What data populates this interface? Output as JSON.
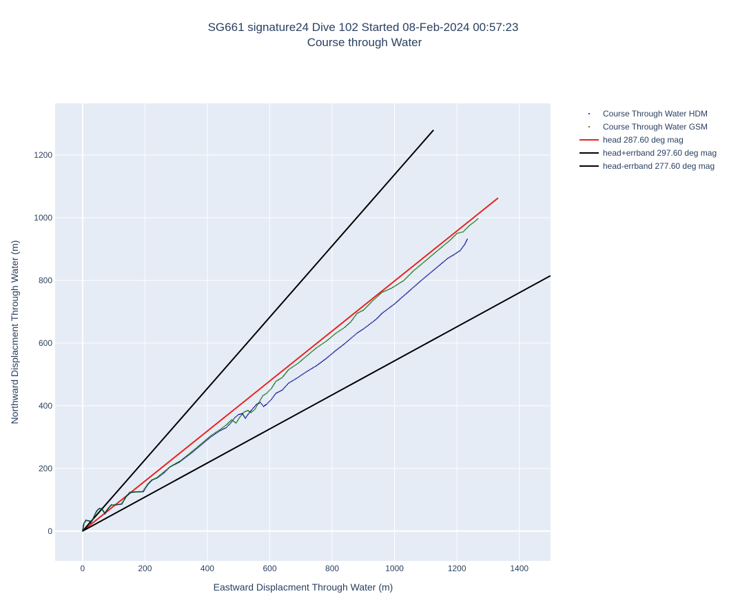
{
  "chart_data": {
    "type": "scatter",
    "title_line1": "SG661 signature24 Dive 102 Started 08-Feb-2024 00:57:23",
    "title_line2": "Course through Water",
    "xlabel": "Eastward Displacment Through Water (m)",
    "ylabel": "Northward Displacment Through Water (m)",
    "xlim": [
      -88,
      1500
    ],
    "ylim": [
      -95,
      1365
    ],
    "xticks": [
      0,
      200,
      400,
      600,
      800,
      1000,
      1200,
      1400
    ],
    "yticks": [
      0,
      200,
      400,
      600,
      800,
      1000,
      1200
    ],
    "grid": true,
    "legend_position": "top-right, outside plot",
    "colors": {
      "plot_bg": "#e5ecf6",
      "grid": "#ffffff",
      "hdm": "#00008b",
      "gsm": "#006400",
      "head": "#e8231b",
      "errband": "#000000"
    },
    "series": [
      {
        "name": "Course Through Water HDM",
        "mode": "markers",
        "color": "#00008b",
        "path": [
          [
            0,
            0
          ],
          [
            3,
            22
          ],
          [
            10,
            34
          ],
          [
            20,
            33
          ],
          [
            26,
            25
          ],
          [
            35,
            42
          ],
          [
            45,
            64
          ],
          [
            55,
            73
          ],
          [
            64,
            68
          ],
          [
            72,
            55
          ],
          [
            82,
            72
          ],
          [
            93,
            84
          ],
          [
            110,
            84
          ],
          [
            126,
            87
          ],
          [
            140,
            110
          ],
          [
            153,
            123
          ],
          [
            170,
            125
          ],
          [
            195,
            126
          ],
          [
            210,
            150
          ],
          [
            223,
            163
          ],
          [
            240,
            170
          ],
          [
            260,
            185
          ],
          [
            280,
            205
          ],
          [
            310,
            220
          ],
          [
            350,
            250
          ],
          [
            380,
            275
          ],
          [
            410,
            300
          ],
          [
            440,
            320
          ],
          [
            460,
            330
          ],
          [
            475,
            345
          ],
          [
            488,
            362
          ],
          [
            500,
            372
          ],
          [
            512,
            375
          ],
          [
            522,
            360
          ],
          [
            530,
            372
          ],
          [
            545,
            390
          ],
          [
            558,
            405
          ],
          [
            570,
            410
          ],
          [
            580,
            398
          ],
          [
            590,
            405
          ],
          [
            605,
            420
          ],
          [
            620,
            440
          ],
          [
            640,
            450
          ],
          [
            660,
            472
          ],
          [
            690,
            490
          ],
          [
            720,
            510
          ],
          [
            750,
            528
          ],
          [
            780,
            550
          ],
          [
            810,
            575
          ],
          [
            840,
            598
          ],
          [
            860,
            615
          ],
          [
            880,
            632
          ],
          [
            900,
            645
          ],
          [
            920,
            660
          ],
          [
            940,
            675
          ],
          [
            960,
            695
          ],
          [
            1000,
            725
          ],
          [
            1040,
            760
          ],
          [
            1080,
            795
          ],
          [
            1110,
            820
          ],
          [
            1140,
            845
          ],
          [
            1170,
            870
          ],
          [
            1190,
            882
          ],
          [
            1210,
            895
          ],
          [
            1225,
            915
          ],
          [
            1235,
            935
          ]
        ]
      },
      {
        "name": "Course Through Water GSM",
        "mode": "markers",
        "color": "#006400",
        "path": [
          [
            0,
            0
          ],
          [
            5,
            25
          ],
          [
            12,
            35
          ],
          [
            22,
            32
          ],
          [
            30,
            32
          ],
          [
            40,
            55
          ],
          [
            50,
            70
          ],
          [
            60,
            72
          ],
          [
            70,
            58
          ],
          [
            80,
            70
          ],
          [
            90,
            82
          ],
          [
            108,
            84
          ],
          [
            124,
            86
          ],
          [
            138,
            108
          ],
          [
            151,
            124
          ],
          [
            168,
            125
          ],
          [
            192,
            126
          ],
          [
            207,
            148
          ],
          [
            221,
            162
          ],
          [
            240,
            172
          ],
          [
            262,
            190
          ],
          [
            285,
            208
          ],
          [
            315,
            225
          ],
          [
            352,
            255
          ],
          [
            382,
            280
          ],
          [
            412,
            305
          ],
          [
            442,
            325
          ],
          [
            462,
            340
          ],
          [
            478,
            355
          ],
          [
            492,
            345
          ],
          [
            505,
            365
          ],
          [
            518,
            380
          ],
          [
            530,
            385
          ],
          [
            540,
            378
          ],
          [
            552,
            388
          ],
          [
            565,
            410
          ],
          [
            578,
            432
          ],
          [
            590,
            440
          ],
          [
            605,
            455
          ],
          [
            620,
            478
          ],
          [
            640,
            490
          ],
          [
            660,
            515
          ],
          [
            690,
            535
          ],
          [
            720,
            560
          ],
          [
            750,
            585
          ],
          [
            780,
            605
          ],
          [
            810,
            630
          ],
          [
            840,
            650
          ],
          [
            860,
            668
          ],
          [
            880,
            695
          ],
          [
            900,
            705
          ],
          [
            930,
            735
          ],
          [
            960,
            762
          ],
          [
            990,
            775
          ],
          [
            1030,
            800
          ],
          [
            1060,
            830
          ],
          [
            1090,
            855
          ],
          [
            1120,
            880
          ],
          [
            1150,
            905
          ],
          [
            1180,
            930
          ],
          [
            1200,
            950
          ],
          [
            1220,
            955
          ],
          [
            1240,
            975
          ],
          [
            1260,
            990
          ],
          [
            1270,
            1000
          ]
        ]
      },
      {
        "name": "head 287.60 deg mag",
        "mode": "line",
        "color": "#e8231b",
        "path": [
          [
            0,
            0
          ],
          [
            1332,
            1063
          ]
        ]
      },
      {
        "name": "head+errband 297.60 deg mag",
        "mode": "line",
        "color": "#000000",
        "path": [
          [
            0,
            0
          ],
          [
            1125,
            1280
          ]
        ]
      },
      {
        "name": "head-errband 277.60 deg mag",
        "mode": "line",
        "color": "#000000",
        "path": [
          [
            0,
            0
          ],
          [
            1500,
            815
          ]
        ]
      }
    ]
  }
}
